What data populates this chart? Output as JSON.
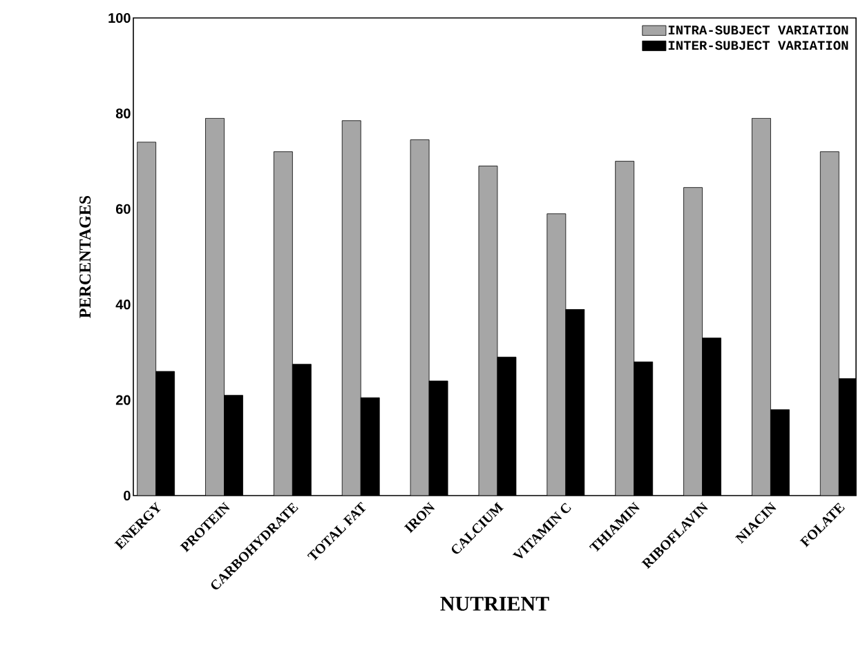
{
  "chart_data": {
    "type": "bar",
    "xlabel": "NUTRIENT",
    "ylabel": "PERCENTAGES",
    "categories": [
      "ENERGY",
      "PROTEIN",
      "CARBOHYDRATE",
      "TOTAL FAT",
      "IRON",
      "CALCIUM",
      "VITAMIN C",
      "THIAMIN",
      "RIBOFLAVIN",
      "NIACIN",
      "FOLATE"
    ],
    "series": [
      {
        "name": "INTRA-SUBJECT VARIATION",
        "color": "#a6a6a6",
        "values": [
          74,
          79,
          72,
          78.5,
          74.5,
          69,
          59,
          70,
          64.5,
          79,
          72
        ]
      },
      {
        "name": "INTER-SUBJECT VARIATION",
        "color": "#000000",
        "values": [
          26,
          21,
          27.5,
          20.5,
          24,
          29,
          39,
          28,
          33,
          18,
          24.5
        ]
      }
    ],
    "ylim": [
      0,
      100
    ],
    "yticks": [
      0,
      20,
      40,
      60,
      80,
      100
    ],
    "legend": "top right"
  }
}
